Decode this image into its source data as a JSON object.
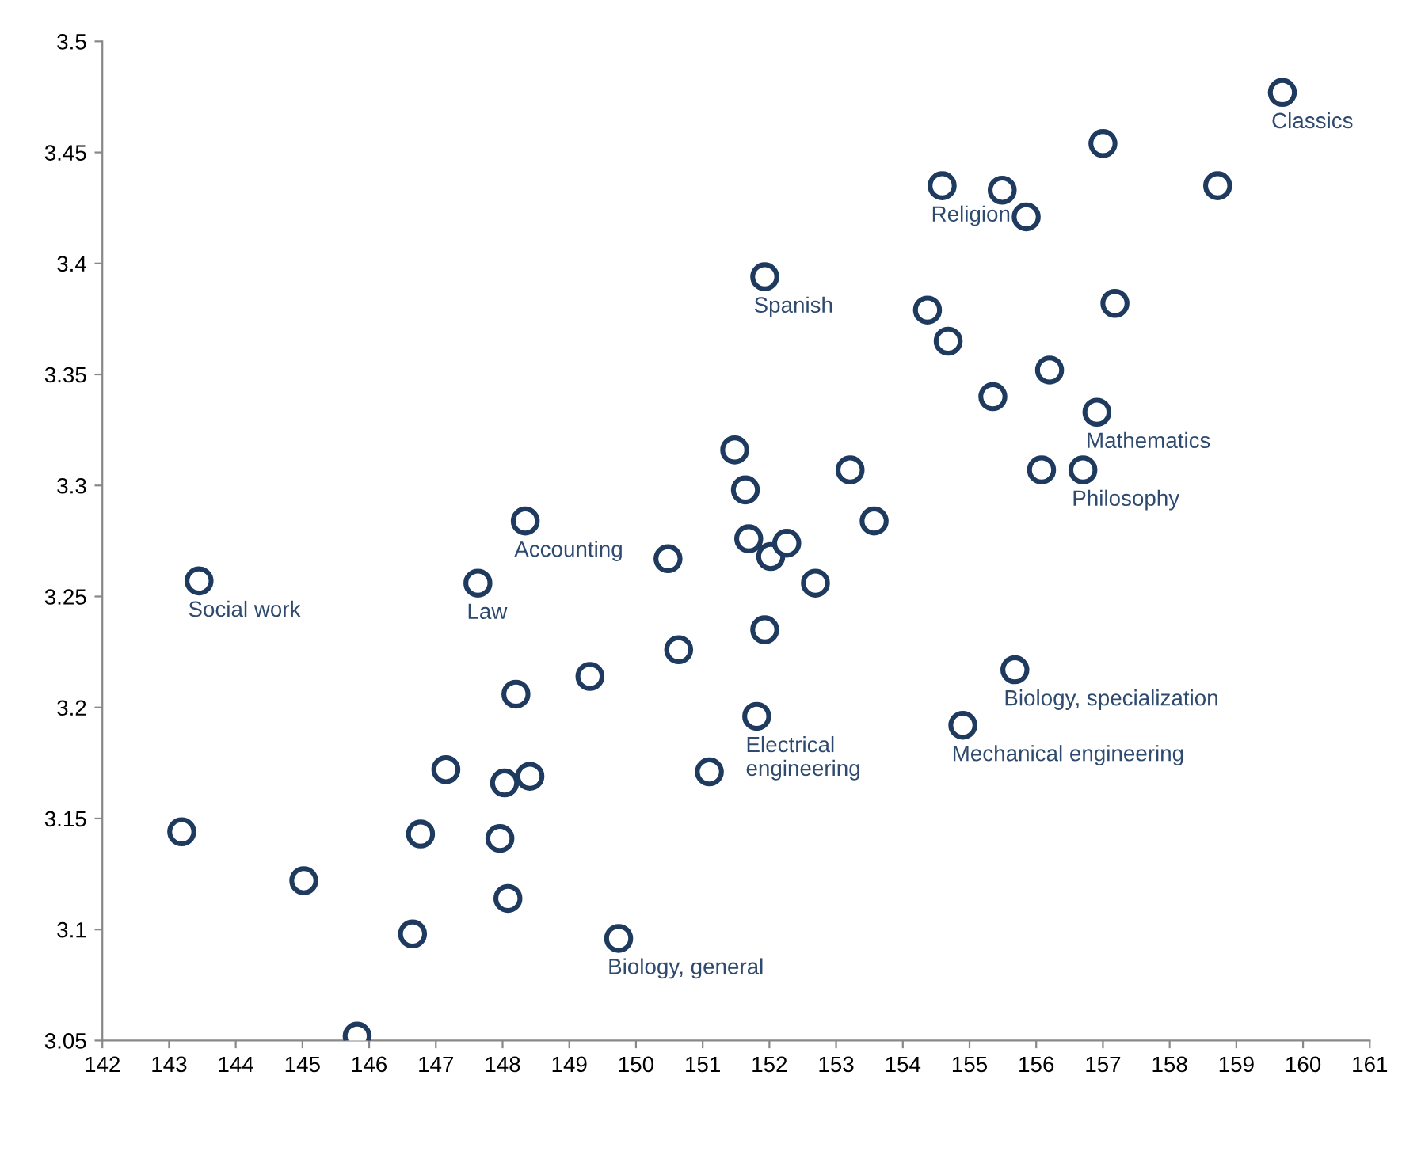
{
  "chart_data": {
    "type": "scatter",
    "x": [
      143.19,
      143.45,
      145.02,
      145.82,
      146.65,
      146.77,
      147.15,
      147.63,
      147.96,
      148.03,
      148.08,
      148.2,
      148.34,
      148.41,
      149.31,
      149.74,
      150.48,
      150.64,
      151.1,
      151.48,
      151.64,
      151.69,
      151.81,
      151.93,
      151.93,
      152.02,
      152.26,
      152.69,
      153.21,
      153.57,
      154.37,
      154.59,
      154.68,
      154.9,
      155.35,
      155.49,
      155.68,
      155.85,
      156.08,
      156.2,
      156.7,
      156.91,
      157.0,
      157.18,
      158.72,
      159.69
    ],
    "values": [
      3.144,
      3.257,
      3.122,
      3.052,
      3.098,
      3.143,
      3.172,
      3.256,
      3.141,
      3.166,
      3.114,
      3.206,
      3.284,
      3.169,
      3.214,
      3.096,
      3.267,
      3.226,
      3.171,
      3.316,
      3.298,
      3.276,
      3.196,
      3.394,
      3.235,
      3.268,
      3.274,
      3.256,
      3.307,
      3.284,
      3.379,
      3.435,
      3.365,
      3.192,
      3.34,
      3.433,
      3.217,
      3.421,
      3.307,
      3.352,
      3.307,
      3.333,
      3.454,
      3.382,
      3.435,
      3.477
    ],
    "color": "#1f3a5f",
    "marker": "circle",
    "xlim": [
      142,
      161
    ],
    "xticks": [
      142,
      143,
      144,
      145,
      146,
      147,
      148,
      149,
      150,
      151,
      152,
      153,
      154,
      155,
      156,
      157,
      158,
      159,
      160,
      161
    ],
    "ylim": [
      3.05,
      3.5
    ],
    "yticks": [
      3.05,
      3.1,
      3.15,
      3.2,
      3.25,
      3.3,
      3.35,
      3.4,
      3.45,
      3.5
    ],
    "grid": false,
    "annotations": [
      {
        "text": "Classics",
        "x": 159.69,
        "y": 3.477
      },
      {
        "text": "Religion",
        "x": 154.59,
        "y": 3.435
      },
      {
        "text": "Spanish",
        "x": 151.93,
        "y": 3.394
      },
      {
        "text": "Mathematics",
        "x": 156.91,
        "y": 3.333
      },
      {
        "text": "Philosophy",
        "x": 156.7,
        "y": 3.307
      },
      {
        "text": "Accounting",
        "x": 148.34,
        "y": 3.284
      },
      {
        "text": "Social work",
        "x": 143.45,
        "y": 3.257
      },
      {
        "text": "Law",
        "x": 147.63,
        "y": 3.256
      },
      {
        "text": "Biology, specialization",
        "x": 155.68,
        "y": 3.217
      },
      {
        "text": "Electrical\nengineering",
        "x": 151.81,
        "y": 3.196
      },
      {
        "text": "Mechanical engineering",
        "x": 154.9,
        "y": 3.192
      },
      {
        "text": "Biology, general",
        "x": 149.74,
        "y": 3.096
      }
    ]
  }
}
